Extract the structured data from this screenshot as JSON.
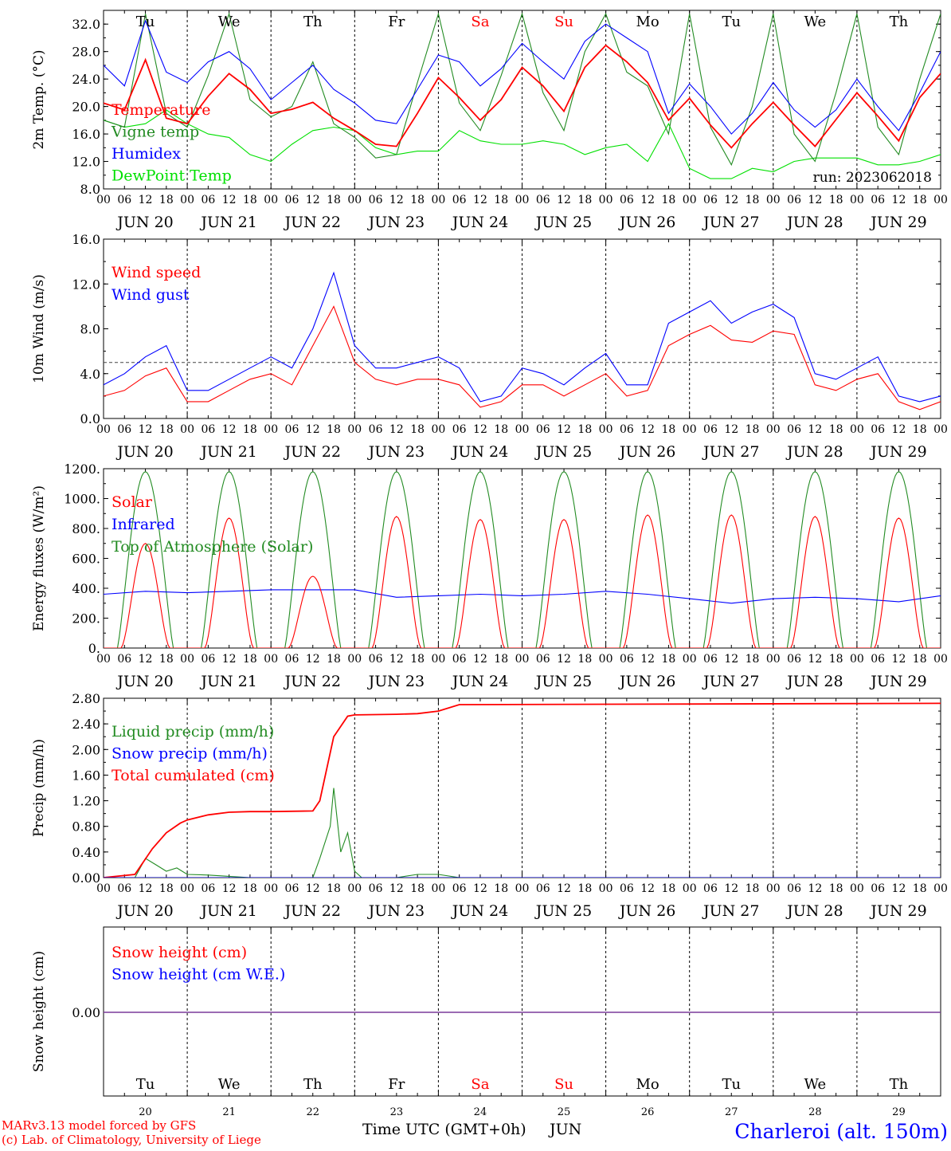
{
  "chart_data": [
    {
      "type": "line",
      "ylabel": "2m Temp. (°C)",
      "ylim": [
        8,
        34
      ],
      "yticks": [
        "8.0",
        "12.0",
        "16.0",
        "20.0",
        "24.0",
        "28.0",
        "32.0"
      ],
      "run_label": "run: 2023062018",
      "series": [
        {
          "name": "Temperature",
          "color": "#ff0000",
          "x": [
            0,
            6,
            12,
            18,
            24,
            30,
            36,
            42,
            48,
            54,
            60,
            66,
            72,
            78,
            84,
            90,
            96,
            102,
            108,
            114,
            120,
            126,
            132,
            138,
            144,
            150,
            156,
            162,
            168,
            174,
            180,
            186,
            192,
            198,
            204,
            210,
            216,
            222,
            228,
            234,
            240
          ],
          "y": [
            20.5,
            19.5,
            26.8,
            18.3,
            17.5,
            21.5,
            24.8,
            22.5,
            19.0,
            19.6,
            20.6,
            18.3,
            16.5,
            14.5,
            14.2,
            19.0,
            24.2,
            21.3,
            18.0,
            21.0,
            25.7,
            23.0,
            19.3,
            25.7,
            28.9,
            26.5,
            23.5,
            18.0,
            21.2,
            17.3,
            14.0,
            17.5,
            20.6,
            17.3,
            14.2,
            18.1,
            22.0,
            18.6,
            15.0,
            21.3,
            24.8
          ]
        },
        {
          "name": "Vigne temp",
          "color": "#228B22",
          "x": [
            0,
            6,
            12,
            18,
            24,
            30,
            36,
            42,
            48,
            54,
            60,
            66,
            72,
            78,
            84,
            90,
            96,
            102,
            108,
            114,
            120,
            126,
            132,
            138,
            144,
            150,
            156,
            162,
            168,
            174,
            180,
            186,
            192,
            198,
            204,
            210,
            216,
            222,
            228,
            234,
            240
          ],
          "y": [
            18.0,
            17.0,
            33.5,
            19.0,
            17.0,
            24.5,
            33.5,
            21.0,
            18.5,
            20.0,
            26.5,
            17.5,
            15.5,
            12.5,
            13.0,
            23.5,
            33.5,
            20.5,
            16.5,
            24.5,
            33.5,
            22.0,
            16.5,
            28.0,
            33.5,
            25.0,
            23.0,
            16.0,
            33.5,
            17.0,
            11.5,
            20.0,
            33.5,
            16.0,
            12.0,
            22.0,
            33.5,
            17.0,
            13.0,
            24.0,
            33.5
          ]
        },
        {
          "name": "Humidex",
          "color": "#0000ff",
          "x": [
            0,
            6,
            12,
            18,
            24,
            30,
            36,
            42,
            48,
            54,
            60,
            66,
            72,
            78,
            84,
            90,
            96,
            102,
            108,
            114,
            120,
            126,
            132,
            138,
            144,
            150,
            156,
            162,
            168,
            174,
            180,
            186,
            192,
            198,
            204,
            210,
            216,
            222,
            228,
            234,
            240
          ],
          "y": [
            26.0,
            23.0,
            32.5,
            25.0,
            23.5,
            26.5,
            28.0,
            25.5,
            21.0,
            23.5,
            26.0,
            22.5,
            20.5,
            18.0,
            17.5,
            22.5,
            27.5,
            26.5,
            23.0,
            25.5,
            29.2,
            26.5,
            24.0,
            29.5,
            32.0,
            30.0,
            28.0,
            19.0,
            23.3,
            20.0,
            16.0,
            19.0,
            23.5,
            19.5,
            17.0,
            19.5,
            24.0,
            20.0,
            16.5,
            22.0,
            28.0
          ]
        },
        {
          "name": "DewPoint Temp",
          "color": "#00e000",
          "x": [
            0,
            6,
            12,
            18,
            24,
            30,
            36,
            42,
            48,
            54,
            60,
            66,
            72,
            78,
            84,
            90,
            96,
            102,
            108,
            114,
            120,
            126,
            132,
            138,
            144,
            150,
            156,
            162,
            168,
            174,
            180,
            186,
            192,
            198,
            204,
            210,
            216,
            222,
            228,
            234,
            240
          ],
          "y": [
            18.0,
            17.0,
            17.5,
            19.5,
            17.5,
            16.0,
            15.5,
            13.0,
            12.0,
            14.5,
            16.5,
            17.0,
            16.5,
            14.0,
            13.0,
            13.5,
            13.5,
            16.5,
            15.0,
            14.5,
            14.5,
            15.0,
            14.5,
            13.0,
            14.0,
            14.5,
            12.0,
            17.5,
            11.0,
            9.5,
            9.5,
            11.0,
            10.5,
            12.0,
            12.5,
            12.5,
            12.5,
            11.5,
            11.5,
            12.0,
            13.0
          ]
        }
      ]
    },
    {
      "type": "line",
      "ylabel": "10m Wind (m/s)",
      "ylim": [
        0,
        16
      ],
      "yticks": [
        "0.0",
        "4.0",
        "8.0",
        "12.0",
        "16.0"
      ],
      "reference_line": 5,
      "series": [
        {
          "name": "Wind speed",
          "color": "#ff0000",
          "x": [
            0,
            6,
            12,
            18,
            24,
            30,
            36,
            42,
            48,
            54,
            60,
            66,
            72,
            78,
            84,
            90,
            96,
            102,
            108,
            114,
            120,
            126,
            132,
            138,
            144,
            150,
            156,
            162,
            168,
            174,
            180,
            186,
            192,
            198,
            204,
            210,
            216,
            222,
            228,
            234,
            240
          ],
          "y": [
            2.0,
            2.5,
            3.8,
            4.5,
            1.5,
            1.5,
            2.5,
            3.5,
            4.0,
            3.0,
            6.5,
            10.0,
            5.0,
            3.5,
            3.0,
            3.5,
            3.5,
            3.0,
            1.0,
            1.5,
            3.0,
            3.0,
            2.0,
            3.0,
            4.0,
            2.0,
            2.5,
            6.5,
            7.5,
            8.3,
            7.0,
            6.8,
            7.8,
            7.5,
            3.0,
            2.5,
            3.5,
            4.0,
            1.5,
            0.8,
            1.5
          ]
        },
        {
          "name": "Wind gust",
          "color": "#0000ff",
          "x": [
            0,
            6,
            12,
            18,
            24,
            30,
            36,
            42,
            48,
            54,
            60,
            66,
            72,
            78,
            84,
            90,
            96,
            102,
            108,
            114,
            120,
            126,
            132,
            138,
            144,
            150,
            156,
            162,
            168,
            174,
            180,
            186,
            192,
            198,
            204,
            210,
            216,
            222,
            228,
            234,
            240
          ],
          "y": [
            3.0,
            4.0,
            5.5,
            6.5,
            2.5,
            2.5,
            3.5,
            4.5,
            5.5,
            4.5,
            8.0,
            13.0,
            6.5,
            4.5,
            4.5,
            5.0,
            5.5,
            4.5,
            1.5,
            2.0,
            4.5,
            4.0,
            3.0,
            4.5,
            5.8,
            3.0,
            3.0,
            8.5,
            9.5,
            10.5,
            8.5,
            9.5,
            10.2,
            9.0,
            4.0,
            3.5,
            4.5,
            5.5,
            2.0,
            1.5,
            2.0
          ]
        }
      ]
    },
    {
      "type": "line",
      "ylabel": "Energy fluxes (W/m²)",
      "ylim": [
        0,
        1200
      ],
      "yticks": [
        "0.",
        "200.",
        "400.",
        "600.",
        "800.",
        "1000.",
        "1200."
      ],
      "series": [
        {
          "name": "Solar",
          "color": "#ff0000",
          "peaks": [
            700,
            870,
            480,
            880,
            860,
            860,
            890,
            890,
            880,
            870
          ]
        },
        {
          "name": "Infrared",
          "color": "#0000ff",
          "x": [
            0,
            12,
            24,
            36,
            48,
            60,
            72,
            84,
            96,
            108,
            120,
            132,
            144,
            156,
            168,
            180,
            192,
            204,
            216,
            228,
            240
          ],
          "y": [
            360,
            380,
            370,
            380,
            390,
            390,
            390,
            340,
            350,
            360,
            350,
            360,
            380,
            360,
            330,
            300,
            330,
            340,
            330,
            310,
            350
          ]
        },
        {
          "name": "Top of Atmosphere (Solar)",
          "color": "#228B22",
          "peaks": [
            1180,
            1180,
            1180,
            1180,
            1180,
            1180,
            1180,
            1180,
            1180,
            1180
          ]
        }
      ]
    },
    {
      "type": "line",
      "ylabel": "Precip (mm/h)",
      "ylim": [
        0,
        2.8
      ],
      "yticks": [
        "0.00",
        "0.40",
        "0.80",
        "1.20",
        "1.60",
        "2.00",
        "2.40",
        "2.80"
      ],
      "series": [
        {
          "name": "Liquid precip (mm/h)",
          "color": "#228B22",
          "x": [
            0,
            9,
            12,
            15,
            18,
            21,
            24,
            30,
            36,
            42,
            48,
            54,
            60,
            62,
            65,
            66,
            68,
            70,
            72,
            74,
            84,
            90,
            96,
            102,
            240
          ],
          "y": [
            0,
            0,
            0.3,
            0.2,
            0.1,
            0.15,
            0.05,
            0.04,
            0.02,
            0,
            0,
            0,
            0,
            0.3,
            0.8,
            1.4,
            0.4,
            0.7,
            0.1,
            0,
            0,
            0.05,
            0.05,
            0,
            0
          ]
        },
        {
          "name": "Snow precip (mm/h)",
          "color": "#0000ff",
          "x": [
            0,
            240
          ],
          "y": [
            0,
            0
          ]
        },
        {
          "name": "Total cumulated (cm)",
          "color": "#ff0000",
          "x": [
            0,
            9,
            14,
            18,
            22,
            24,
            30,
            36,
            42,
            48,
            60,
            62,
            66,
            70,
            72,
            84,
            90,
            96,
            102,
            240
          ],
          "y": [
            0,
            0.05,
            0.45,
            0.7,
            0.85,
            0.9,
            0.98,
            1.02,
            1.03,
            1.03,
            1.04,
            1.2,
            2.2,
            2.52,
            2.54,
            2.55,
            2.56,
            2.6,
            2.7,
            2.72
          ]
        }
      ]
    },
    {
      "type": "line",
      "ylabel": "Snow height (cm)",
      "yticks": [
        "0.00"
      ],
      "series": [
        {
          "name": "Snow height (cm)",
          "color": "#ff0000",
          "x": [
            0,
            240
          ],
          "y": [
            0,
            0
          ]
        },
        {
          "name": "Snow height (cm W.E.)",
          "color": "#0000ff",
          "x": [
            0,
            240
          ],
          "y": [
            0,
            0
          ]
        }
      ]
    }
  ],
  "x_axis": {
    "hour_ticks": [
      "00",
      "06",
      "12",
      "18"
    ],
    "final_tick": "00",
    "dates": [
      "JUN 20",
      "JUN 21",
      "JUN 22",
      "JUN 23",
      "JUN 24",
      "JUN 25",
      "JUN 26",
      "JUN 27",
      "JUN 28",
      "JUN 29"
    ],
    "weekdays": [
      "Tu",
      "We",
      "Th",
      "Fr",
      "Sa",
      "Su",
      "Mo",
      "Tu",
      "We",
      "Th"
    ],
    "weekend_flags": [
      false,
      false,
      false,
      false,
      true,
      true,
      false,
      false,
      false,
      false
    ],
    "day_numbers": [
      "20",
      "21",
      "22",
      "23",
      "24",
      "25",
      "26",
      "27",
      "28",
      "29"
    ],
    "xlabel": "Time UTC (GMT+0h)",
    "month_label": "JUN"
  },
  "footer": {
    "credit_line1": "MARv3.13 model forced by GFS",
    "credit_line2": "(c) Lab. of Climatology, University of Liege",
    "station": "Charleroi (alt. 150m)"
  },
  "colors": {
    "weekend": "#ff0000",
    "station": "#0000ff",
    "credits": "#ff0000"
  }
}
